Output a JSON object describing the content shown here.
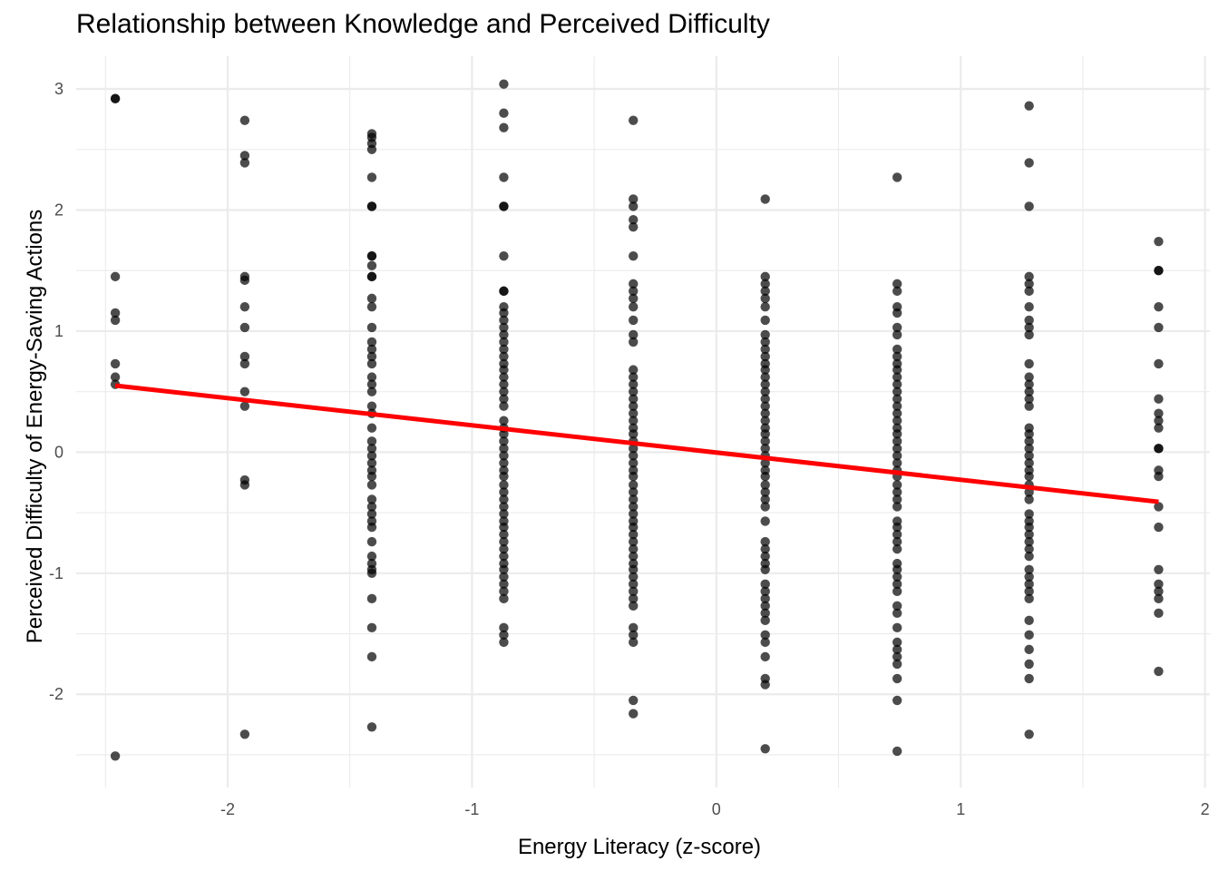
{
  "chart_data": {
    "type": "scatter",
    "title": "Relationship between Knowledge and Perceived Difficulty",
    "xlabel": "Energy Literacy (z-score)",
    "ylabel": "Perceived Difficulty of Energy-Saving Actions",
    "xlim": [
      -2.62,
      2.02
    ],
    "ylim": [
      -2.77,
      3.27
    ],
    "x_ticks": [
      -2,
      -1,
      0,
      1,
      2
    ],
    "x_tick_labels": [
      "-2",
      "-1",
      "0",
      "1",
      "2"
    ],
    "y_ticks": [
      -2,
      -1,
      0,
      1,
      2,
      3
    ],
    "y_tick_labels": [
      "-2",
      "-1",
      "0",
      "1",
      "2",
      "3"
    ],
    "grid": true,
    "point_color": "#000000",
    "point_opacity": 0.7,
    "trend_line": {
      "color": "#ff0000",
      "x": [
        -2.46,
        1.81
      ],
      "y": [
        0.55,
        -0.41
      ]
    },
    "groups": [
      {
        "x": -2.46,
        "y": [
          2.92,
          2.92,
          1.45,
          1.15,
          1.09,
          0.73,
          0.62,
          0.56,
          -2.51
        ]
      },
      {
        "x": -1.93,
        "y": [
          2.74,
          2.45,
          2.39,
          1.45,
          1.42,
          1.2,
          1.03,
          0.79,
          0.73,
          0.5,
          0.38,
          -0.23,
          -0.27,
          -2.33
        ]
      },
      {
        "x": -1.41,
        "y": [
          2.63,
          2.6,
          2.55,
          2.5,
          2.27,
          2.03,
          2.03,
          1.62,
          1.62,
          1.54,
          1.45,
          1.45,
          1.27,
          1.2,
          1.03,
          0.91,
          0.85,
          0.79,
          0.73,
          0.62,
          0.56,
          0.5,
          0.38,
          0.32,
          0.2,
          0.09,
          0.03,
          -0.03,
          -0.09,
          -0.15,
          -0.2,
          -0.27,
          -0.39,
          -0.45,
          -0.51,
          -0.57,
          -0.62,
          -0.74,
          -0.86,
          -0.92,
          -0.97,
          -1.0,
          -1.21,
          -1.45,
          -1.69,
          -2.27
        ]
      },
      {
        "x": -0.87,
        "y": [
          3.04,
          2.8,
          2.68,
          2.27,
          2.03,
          2.03,
          1.62,
          1.33,
          1.33,
          1.2,
          1.15,
          1.09,
          1.03,
          0.97,
          0.91,
          0.85,
          0.79,
          0.73,
          0.68,
          0.62,
          0.56,
          0.5,
          0.44,
          0.38,
          0.26,
          0.2,
          0.15,
          0.09,
          0.03,
          -0.03,
          -0.09,
          -0.15,
          -0.2,
          -0.27,
          -0.33,
          -0.39,
          -0.45,
          -0.51,
          -0.57,
          -0.62,
          -0.68,
          -0.74,
          -0.8,
          -0.86,
          -0.92,
          -0.97,
          -1.03,
          -1.09,
          -1.15,
          -1.21,
          -1.45,
          -1.51,
          -1.57
        ]
      },
      {
        "x": -0.34,
        "y": [
          2.74,
          2.09,
          2.03,
          1.92,
          1.86,
          1.62,
          1.39,
          1.33,
          1.27,
          1.2,
          1.09,
          0.97,
          0.91,
          0.68,
          0.62,
          0.56,
          0.5,
          0.44,
          0.38,
          0.32,
          0.26,
          0.2,
          0.15,
          0.09,
          0.03,
          -0.03,
          -0.09,
          -0.15,
          -0.2,
          -0.27,
          -0.33,
          -0.39,
          -0.45,
          -0.51,
          -0.57,
          -0.62,
          -0.68,
          -0.74,
          -0.8,
          -0.86,
          -0.92,
          -0.97,
          -1.03,
          -1.09,
          -1.15,
          -1.21,
          -1.27,
          -1.45,
          -1.51,
          -1.57,
          -2.05,
          -2.16
        ]
      },
      {
        "x": 0.2,
        "y": [
          2.09,
          1.45,
          1.39,
          1.33,
          1.27,
          1.2,
          1.09,
          0.97,
          0.91,
          0.85,
          0.79,
          0.73,
          0.68,
          0.62,
          0.56,
          0.5,
          0.44,
          0.38,
          0.32,
          0.26,
          0.2,
          0.15,
          0.09,
          0.03,
          -0.03,
          -0.09,
          -0.15,
          -0.2,
          -0.27,
          -0.33,
          -0.39,
          -0.45,
          -0.57,
          -0.74,
          -0.8,
          -0.86,
          -0.92,
          -0.97,
          -1.09,
          -1.15,
          -1.21,
          -1.27,
          -1.33,
          -1.39,
          -1.51,
          -1.57,
          -1.69,
          -1.87,
          -1.92,
          -2.45
        ]
      },
      {
        "x": 0.74,
        "y": [
          2.27,
          1.39,
          1.33,
          1.2,
          1.15,
          1.03,
          0.97,
          0.85,
          0.79,
          0.73,
          0.68,
          0.62,
          0.56,
          0.5,
          0.44,
          0.38,
          0.32,
          0.26,
          0.2,
          0.15,
          0.09,
          0.03,
          -0.03,
          -0.09,
          -0.15,
          -0.2,
          -0.27,
          -0.33,
          -0.39,
          -0.45,
          -0.57,
          -0.62,
          -0.68,
          -0.74,
          -0.8,
          -0.92,
          -0.97,
          -1.03,
          -1.09,
          -1.15,
          -1.27,
          -1.33,
          -1.45,
          -1.57,
          -1.63,
          -1.69,
          -1.75,
          -1.87,
          -2.05,
          -2.47
        ]
      },
      {
        "x": 1.28,
        "y": [
          2.86,
          2.39,
          2.03,
          1.45,
          1.39,
          1.33,
          1.2,
          1.09,
          1.03,
          0.97,
          0.73,
          0.62,
          0.56,
          0.5,
          0.44,
          0.38,
          0.2,
          0.15,
          0.09,
          0.03,
          -0.03,
          -0.09,
          -0.15,
          -0.2,
          -0.27,
          -0.33,
          -0.39,
          -0.51,
          -0.57,
          -0.62,
          -0.68,
          -0.74,
          -0.8,
          -0.86,
          -0.97,
          -1.03,
          -1.09,
          -1.15,
          -1.21,
          -1.39,
          -1.51,
          -1.63,
          -1.75,
          -1.87,
          -2.33
        ]
      },
      {
        "x": 1.81,
        "y": [
          1.74,
          1.5,
          1.5,
          1.2,
          1.03,
          0.73,
          0.44,
          0.32,
          0.26,
          0.2,
          0.03,
          0.03,
          -0.15,
          -0.2,
          -0.45,
          -0.62,
          -0.97,
          -1.09,
          -1.15,
          -1.21,
          -1.33,
          -1.81
        ]
      }
    ]
  }
}
